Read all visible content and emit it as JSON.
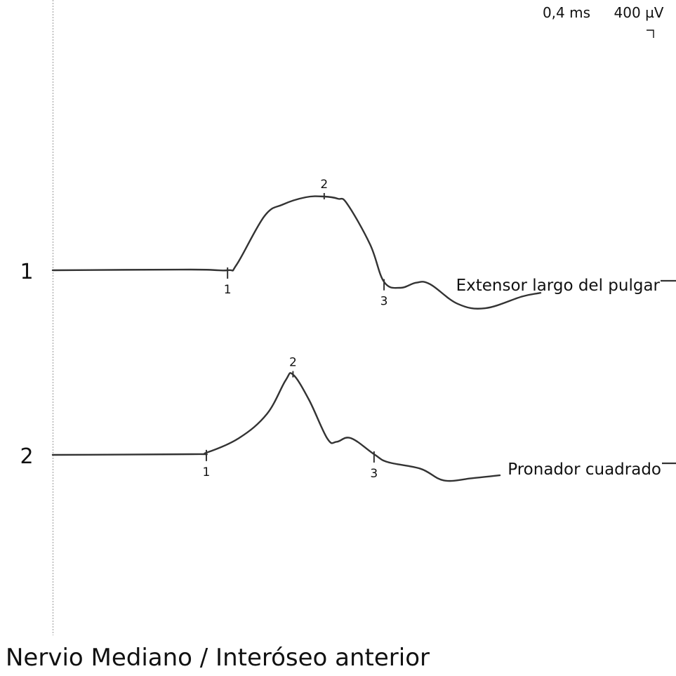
{
  "figure": {
    "title": "Nervio Mediano / Interóseo anterior",
    "scale_time": "0,4 ms",
    "scale_amplitude": "400 µV"
  },
  "colors": {
    "trace": "#333333",
    "baseline_guide": "#9a9a9a",
    "text": "#111111"
  },
  "chart_data": {
    "type": "line",
    "title": "Nervio Mediano / Interóseo anterior",
    "x_unit": "ms",
    "y_unit": "µV",
    "x_division": "0,4 ms",
    "y_division": "400 µV",
    "grid": false,
    "legend": "none",
    "series": [
      {
        "name": "Extensor largo del pulgar",
        "channel": "1",
        "points": [
          [
            0.0,
            0
          ],
          [
            1.5,
            10
          ],
          [
            1.9,
            0
          ],
          [
            2.0,
            80
          ],
          [
            2.3,
            740
          ],
          [
            2.5,
            900
          ],
          [
            2.75,
            1000
          ],
          [
            2.95,
            1010
          ],
          [
            3.1,
            980
          ],
          [
            3.2,
            910
          ],
          [
            3.45,
            350
          ],
          [
            3.6,
            -160
          ],
          [
            3.78,
            -240
          ],
          [
            3.95,
            -170
          ],
          [
            4.1,
            -190
          ],
          [
            4.4,
            -460
          ],
          [
            4.7,
            -520
          ],
          [
            5.1,
            -360
          ],
          [
            5.3,
            -310
          ]
        ],
        "markers": [
          {
            "label": "1",
            "x": 1.9
          },
          {
            "label": "2",
            "x": 2.95
          },
          {
            "label": "3",
            "x": 3.6
          }
        ]
      },
      {
        "name": "Pronador cuadrado",
        "channel": "2",
        "points": [
          [
            0.0,
            0
          ],
          [
            1.5,
            10
          ],
          [
            1.65,
            30
          ],
          [
            2.0,
            230
          ],
          [
            2.3,
            560
          ],
          [
            2.5,
            1020
          ],
          [
            2.58,
            1100
          ],
          [
            2.75,
            760
          ],
          [
            2.95,
            220
          ],
          [
            3.05,
            180
          ],
          [
            3.2,
            230
          ],
          [
            3.45,
            10
          ],
          [
            3.6,
            -100
          ],
          [
            3.95,
            -190
          ],
          [
            4.2,
            -350
          ],
          [
            4.5,
            -320
          ],
          [
            4.8,
            -280
          ]
        ],
        "markers": [
          {
            "label": "1",
            "x": 1.65
          },
          {
            "label": "2",
            "x": 2.58
          },
          {
            "label": "3",
            "x": 3.45
          }
        ]
      }
    ]
  }
}
